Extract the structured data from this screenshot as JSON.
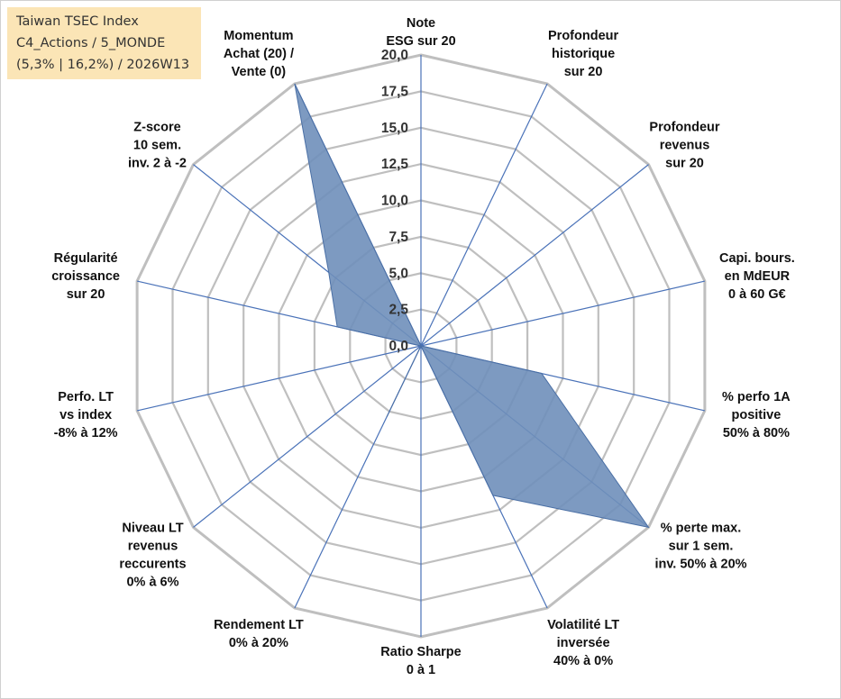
{
  "title_box": {
    "line1": "Taiwan TSEC Index",
    "line2": "C4_Actions / 5_MONDE",
    "line3": "(5,3% | 16,2%) / 2026W13"
  },
  "colors": {
    "grid": "#bfbfbf",
    "spoke": "#4a72b8",
    "fill": "#6f8fba",
    "edge": "#4a6fa5"
  },
  "chart_data": {
    "type": "radar",
    "title": "Taiwan TSEC Index",
    "rmin": 0,
    "rmax": 20,
    "ticks": [
      "0,0",
      "2,5",
      "5,0",
      "7,5",
      "10,0",
      "12,5",
      "15,0",
      "17,5",
      "20,0"
    ],
    "tick_values": [
      0,
      2.5,
      5,
      7.5,
      10,
      12.5,
      15,
      17.5,
      20
    ],
    "axes": [
      {
        "label": [
          "Note",
          "ESG sur 20"
        ],
        "value": 0
      },
      {
        "label": [
          "Profondeur",
          "historique",
          "sur 20"
        ],
        "value": 0
      },
      {
        "label": [
          "Profondeur",
          "revenus",
          "sur 20"
        ],
        "value": 0
      },
      {
        "label": [
          "Capi. bours.",
          "en MdEUR",
          "0 à 60 G€"
        ],
        "value": 0
      },
      {
        "label": [
          "% perfo 1A",
          "positive",
          "50% à 80%"
        ],
        "value": 8.5
      },
      {
        "label": [
          "% perte max.",
          "sur 1 sem.",
          "inv. 50% à 20%"
        ],
        "value": 20
      },
      {
        "label": [
          "Volatilité LT",
          "inversée",
          "40% à 0%"
        ],
        "value": 11.4
      },
      {
        "label": [
          "Ratio Sharpe",
          "0 à 1"
        ],
        "value": 0
      },
      {
        "label": [
          "Rendement LT",
          "0% à 20%"
        ],
        "value": 5.4
      },
      {
        "label": [
          "Niveau LT",
          "revenus",
          "reccurents",
          "0% à 6%"
        ],
        "value": 0
      },
      {
        "label": [
          "Perfo. LT",
          "vs index",
          "-8% à 12%"
        ],
        "value": 0
      },
      {
        "label": [
          "Régularité",
          "croissance",
          "sur 20"
        ],
        "value": 5.9
      },
      {
        "label": [
          "Z-score",
          "10 sem.",
          "inv. 2 à -2"
        ],
        "value": 8.1
      },
      {
        "label": [
          "Momentum",
          "Achat (20) /",
          "Vente (0)"
        ],
        "value": 20
      }
    ]
  }
}
